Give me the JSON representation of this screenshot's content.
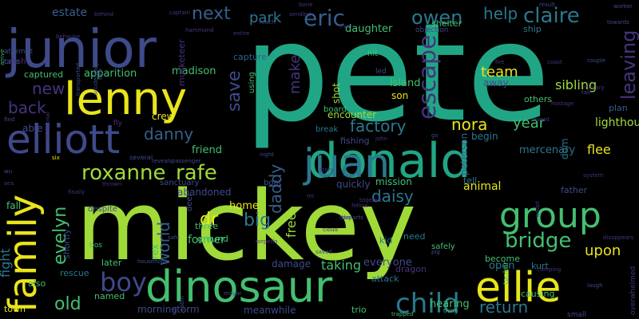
{
  "background": "#000000",
  "palette": {
    "teal": "#21a685",
    "lime": "#a0da39",
    "yellow": "#e9e51a",
    "green": "#44bf70",
    "blue": "#2a788e",
    "slate": "#355f8d",
    "indigo": "#3e4a89",
    "purple": "#46337e",
    "violet": "#440154"
  },
  "words": [
    {
      "text": "pete",
      "color": "#21a685",
      "weight": 100
    },
    {
      "text": "mickey",
      "color": "#a0da39",
      "weight": 65
    },
    {
      "text": "junior",
      "color": "#3e4a89",
      "weight": 40
    },
    {
      "text": "donald",
      "color": "#21a685",
      "weight": 32
    },
    {
      "text": "lenny",
      "color": "#e9e51a",
      "weight": 30
    },
    {
      "text": "dinosaur",
      "color": "#44bf70",
      "weight": 28
    },
    {
      "text": "elliott",
      "color": "#3e4a89",
      "weight": 26
    },
    {
      "text": "juan",
      "color": "#2a788e",
      "weight": 26
    },
    {
      "text": "ellie",
      "color": "#e9e51a",
      "weight": 25
    },
    {
      "text": "family",
      "color": "#e9e51a",
      "weight": 24
    },
    {
      "text": "group",
      "color": "#44bf70",
      "weight": 22
    },
    {
      "text": "roxanne",
      "color": "#a0da39",
      "weight": 18
    },
    {
      "text": "rafe",
      "color": "#a0da39",
      "weight": 18
    },
    {
      "text": "boy",
      "color": "#3e4a89",
      "weight": 17
    },
    {
      "text": "child",
      "color": "#2a788e",
      "weight": 16
    },
    {
      "text": "eric",
      "color": "#355f8d",
      "weight": 15
    },
    {
      "text": "claire",
      "color": "#2a788e",
      "weight": 15
    },
    {
      "text": "owen",
      "color": "#2a788e",
      "weight": 15
    },
    {
      "text": "escape",
      "color": "#46337e",
      "weight": 15
    },
    {
      "text": "evelyn",
      "color": "#44bf70",
      "weight": 15
    },
    {
      "text": "bridge",
      "color": "#44bf70",
      "weight": 14
    },
    {
      "text": "daisy",
      "color": "#2a788e",
      "weight": 14
    },
    {
      "text": "factory",
      "color": "#2a788e",
      "weight": 14
    },
    {
      "text": "big",
      "color": "#2a788e",
      "weight": 14
    },
    {
      "text": "leaving",
      "color": "#46337e",
      "weight": 13
    },
    {
      "text": "danny",
      "color": "#355f8d",
      "weight": 13
    },
    {
      "text": "save",
      "color": "#3e4a89",
      "weight": 13
    },
    {
      "text": "next",
      "color": "#355f8d",
      "weight": 12
    },
    {
      "text": "team",
      "color": "#e9e51a",
      "weight": 12
    },
    {
      "text": "nora",
      "color": "#e9e51a",
      "weight": 12
    },
    {
      "text": "year",
      "color": "#44bf70",
      "weight": 12
    },
    {
      "text": "daddy",
      "color": "#355f8d",
      "weight": 12
    },
    {
      "text": "upon",
      "color": "#e9e51a",
      "weight": 12
    },
    {
      "text": "return",
      "color": "#2a788e",
      "weight": 12
    },
    {
      "text": "world",
      "color": "#355f8d",
      "weight": 11
    },
    {
      "text": "back",
      "color": "#46337e",
      "weight": 11
    },
    {
      "text": "new",
      "color": "#46337e",
      "weight": 11
    },
    {
      "text": "old",
      "color": "#44bf70",
      "weight": 11
    },
    {
      "text": "help",
      "color": "#2a788e",
      "weight": 11
    },
    {
      "text": "dr",
      "color": "#e9e51a",
      "weight": 11
    },
    {
      "text": "park",
      "color": "#2a788e",
      "weight": 10
    },
    {
      "text": "make",
      "color": "#46337e",
      "weight": 10
    },
    {
      "text": "fight",
      "color": "#2a788e",
      "weight": 10
    },
    {
      "text": "free",
      "color": "#a0da39",
      "weight": 10
    },
    {
      "text": "animal",
      "color": "#e9e51a",
      "weight": 10
    },
    {
      "text": "flee",
      "color": "#e9e51a",
      "weight": 9
    },
    {
      "text": "sibling",
      "color": "#a0da39",
      "weight": 9
    },
    {
      "text": "taking",
      "color": "#44bf70",
      "weight": 9
    },
    {
      "text": "former",
      "color": "#44bf70",
      "weight": 9
    },
    {
      "text": "estate",
      "color": "#355f8d",
      "weight": 9
    },
    {
      "text": "apparition",
      "color": "#44bf70",
      "weight": 8
    },
    {
      "text": "madison",
      "color": "#44bf70",
      "weight": 8
    },
    {
      "text": "friend",
      "color": "#44bf70",
      "weight": 8
    },
    {
      "text": "home",
      "color": "#e9e51a",
      "weight": 8
    },
    {
      "text": "rex",
      "color": "#44bf70",
      "weight": 8
    },
    {
      "text": "daughter",
      "color": "#44bf70",
      "weight": 8
    },
    {
      "text": "lighthouse",
      "color": "#a0da39",
      "weight": 8
    },
    {
      "text": "island",
      "color": "#44bf70",
      "weight": 8
    },
    {
      "text": "son",
      "color": "#e9e51a",
      "weight": 8
    },
    {
      "text": "shot",
      "color": "#a0da39",
      "weight": 8
    },
    {
      "text": "everyone",
      "color": "#3e4a89",
      "weight": 8
    },
    {
      "text": "mercenary",
      "color": "#2a788e",
      "weight": 8
    },
    {
      "text": "hearing",
      "color": "#44bf70",
      "weight": 8
    },
    {
      "text": "open",
      "color": "#2a788e",
      "weight": 8
    },
    {
      "text": "fall",
      "color": "#44bf70",
      "weight": 8
    },
    {
      "text": "crew",
      "color": "#e9e51a",
      "weight": 7
    },
    {
      "text": "able",
      "color": "#3e4a89",
      "weight": 7
    },
    {
      "text": "abandoned",
      "color": "#3e4a89",
      "weight": 7
    },
    {
      "text": "morning",
      "color": "#3e4a89",
      "weight": 7
    },
    {
      "text": "storm",
      "color": "#3e4a89",
      "weight": 7
    },
    {
      "text": "meanwhile",
      "color": "#3e4a89",
      "weight": 7
    },
    {
      "text": "encounter",
      "color": "#a0da39",
      "weight": 7
    },
    {
      "text": "away",
      "color": "#3e4a89",
      "weight": 7
    },
    {
      "text": "begin",
      "color": "#2a788e",
      "weight": 7
    },
    {
      "text": "father",
      "color": "#3e4a89",
      "weight": 7
    },
    {
      "text": "quickly",
      "color": "#3e4a89",
      "weight": 7
    },
    {
      "text": "mission",
      "color": "#44bf70",
      "weight": 7
    },
    {
      "text": "tell",
      "color": "#2a788e",
      "weight": 7
    },
    {
      "text": "become",
      "color": "#44bf70",
      "weight": 7
    },
    {
      "text": "kurt",
      "color": "#2a788e",
      "weight": 7
    },
    {
      "text": "causing",
      "color": "#44bf70",
      "weight": 7
    },
    {
      "text": "trio",
      "color": "#44bf70",
      "weight": 7
    },
    {
      "text": "need",
      "color": "#2a788e",
      "weight": 6
    },
    {
      "text": "dragon",
      "color": "#46337e",
      "weight": 6
    },
    {
      "text": "attack",
      "color": "#2a788e",
      "weight": 6
    },
    {
      "text": "damage",
      "color": "#3e4a89",
      "weight": 6
    },
    {
      "text": "ground",
      "color": "#44bf70",
      "weight": 6
    },
    {
      "text": "three",
      "color": "#44bf70",
      "weight": 6
    },
    {
      "text": "later",
      "color": "#44bf70",
      "weight": 6
    },
    {
      "text": "named",
      "color": "#44bf70",
      "weight": 6
    },
    {
      "text": "town",
      "color": "#e9e51a",
      "weight": 6
    },
    {
      "text": "shortly",
      "color": "#3e4a89",
      "weight": 6
    },
    {
      "text": "rescue",
      "color": "#2a788e",
      "weight": 6
    },
    {
      "text": "also",
      "color": "#44bf70",
      "weight": 6
    },
    {
      "text": "shelter",
      "color": "#44bf70",
      "weight": 6
    },
    {
      "text": "ship",
      "color": "#2a788e",
      "weight": 6
    },
    {
      "text": "others",
      "color": "#44bf70",
      "weight": 6
    },
    {
      "text": "plan",
      "color": "#355f8d",
      "weight": 6
    },
    {
      "text": "dom",
      "color": "#2a788e",
      "weight": 6
    },
    {
      "text": "kid",
      "color": "#2a788e",
      "weight": 6
    },
    {
      "text": "peterson",
      "color": "#355f8d",
      "weight": 6
    },
    {
      "text": "fishing",
      "color": "#3e4a89",
      "weight": 6
    },
    {
      "text": "musketeer",
      "color": "#46337e",
      "weight": 6
    },
    {
      "text": "captured",
      "color": "#44bf70",
      "weight": 5
    },
    {
      "text": "crash",
      "color": "#46337e",
      "weight": 5
    },
    {
      "text": "capture",
      "color": "#355f8d",
      "weight": 5
    },
    {
      "text": "hit",
      "color": "#44bf70",
      "weight": 5
    },
    {
      "text": "using",
      "color": "#44bf70",
      "weight": 5
    },
    {
      "text": "board",
      "color": "#44bf70",
      "weight": 5
    },
    {
      "text": "break",
      "color": "#2a788e",
      "weight": 5
    },
    {
      "text": "despite",
      "color": "#3e4a89",
      "weight": 5
    },
    {
      "text": "sanctuary",
      "color": "#3e4a89",
      "weight": 5
    },
    {
      "text": "boat",
      "color": "#3e4a89",
      "weight": 5
    },
    {
      "text": "deer",
      "color": "#3e4a89",
      "weight": 5
    },
    {
      "text": "safely",
      "color": "#44bf70",
      "weight": 5
    },
    {
      "text": "small",
      "color": "#3e4a89",
      "weight": 5
    },
    {
      "text": "overwhelmed",
      "color": "#46337e",
      "weight": 4
    },
    {
      "text": "objection",
      "color": "#3e4a89",
      "weight": 4
    },
    {
      "text": "led",
      "color": "#3e4a89",
      "weight": 4
    },
    {
      "text": "tanker",
      "color": "#44bf70",
      "weight": 4
    },
    {
      "text": "bos",
      "color": "#44bf70",
      "weight": 4
    },
    {
      "text": "attempt",
      "color": "#3e4a89",
      "weight": 4
    },
    {
      "text": "take",
      "color": "#3e4a89",
      "weight": 4
    },
    {
      "text": "fly",
      "color": "#46337e",
      "weight": 4
    },
    {
      "text": "several",
      "color": "#3e4a89",
      "weight": 4
    },
    {
      "text": "six",
      "color": "#e9e51a",
      "weight": 3
    },
    {
      "text": "finally",
      "color": "#46337e",
      "weight": 3
    },
    {
      "text": "thrown",
      "color": "#46337e",
      "weight": 3
    },
    {
      "text": "transported",
      "color": "#3e4a89",
      "weight": 3
    },
    {
      "text": "accidentally",
      "color": "#3e4a89",
      "weight": 3
    },
    {
      "text": "reveals",
      "color": "#3e4a89",
      "weight": 3
    },
    {
      "text": "passenger",
      "color": "#3e4a89",
      "weight": 3
    },
    {
      "text": "torpedo",
      "color": "#46337e",
      "weight": 3
    },
    {
      "text": "mayor",
      "color": "#3e4a89",
      "weight": 3
    },
    {
      "text": "cabin",
      "color": "#3e4a89",
      "weight": 3
    },
    {
      "text": "household",
      "color": "#3e4a89",
      "weight": 3
    },
    {
      "text": "safe",
      "color": "#3e4a89",
      "weight": 3
    },
    {
      "text": "saved",
      "color": "#3e4a89",
      "weight": 3
    },
    {
      "text": "cloud",
      "color": "#46337e",
      "weight": 3
    },
    {
      "text": "door",
      "color": "#3e4a89",
      "weight": 3
    },
    {
      "text": "go",
      "color": "#3e4a89",
      "weight": 3
    },
    {
      "text": "john",
      "color": "#46337e",
      "weight": 3
    },
    {
      "text": "pig",
      "color": "#3e4a89",
      "weight": 3
    },
    {
      "text": "trapped",
      "color": "#44bf70",
      "weight": 3
    },
    {
      "text": "thing",
      "color": "#44bf70",
      "weight": 3
    },
    {
      "text": "laugh",
      "color": "#3e4a89",
      "weight": 3
    },
    {
      "text": "together",
      "color": "#46337e",
      "weight": 3
    },
    {
      "text": "fellow",
      "color": "#46337e",
      "weight": 3
    },
    {
      "text": "departs",
      "color": "#3e4a89",
      "weight": 3
    },
    {
      "text": "mr",
      "color": "#46337e",
      "weight": 3
    },
    {
      "text": "night",
      "color": "#3e4a89",
      "weight": 3
    },
    {
      "text": "story",
      "color": "#46337e",
      "weight": 3
    },
    {
      "text": "event",
      "color": "#46337e",
      "weight": 3
    },
    {
      "text": "hostage",
      "color": "#46337e",
      "weight": 3
    },
    {
      "text": "tail",
      "color": "#3e4a89",
      "weight": 3
    },
    {
      "text": "military",
      "color": "#46337e",
      "weight": 3
    },
    {
      "text": "fire",
      "color": "#46337e",
      "weight": 3
    },
    {
      "text": "coast",
      "color": "#46337e",
      "weight": 3
    },
    {
      "text": "towards",
      "color": "#3e4a89",
      "weight": 3
    },
    {
      "text": "couple",
      "color": "#3e4a89",
      "weight": 3
    },
    {
      "text": "worker",
      "color": "#3e4a89",
      "weight": 3
    },
    {
      "text": "result",
      "color": "#3e4a89",
      "weight": 3
    },
    {
      "text": "bone",
      "color": "#46337e",
      "weight": 3
    },
    {
      "text": "reach",
      "color": "#3e4a89",
      "weight": 3
    },
    {
      "text": "river",
      "color": "#46337e",
      "weight": 3
    },
    {
      "text": "captain",
      "color": "#46337e",
      "weight": 3
    },
    {
      "text": "behind",
      "color": "#46337e",
      "weight": 3
    },
    {
      "text": "sending",
      "color": "#46337e",
      "weight": 3
    },
    {
      "text": "hammond",
      "color": "#46337e",
      "weight": 3
    },
    {
      "text": "entire",
      "color": "#46337e",
      "weight": 3
    },
    {
      "text": "behavior",
      "color": "#46337e",
      "weight": 3
    },
    {
      "text": "arrive",
      "color": "#44bf70",
      "weight": 3
    },
    {
      "text": "find",
      "color": "#3e4a89",
      "weight": 3
    },
    {
      "text": "wu",
      "color": "#3e4a89",
      "weight": 3
    },
    {
      "text": "sea",
      "color": "#46337e",
      "weight": 3
    },
    {
      "text": "tree",
      "color": "#3e4a89",
      "weight": 3
    },
    {
      "text": "additional",
      "color": "#46337e",
      "weight": 3
    },
    {
      "text": "system",
      "color": "#46337e",
      "weight": 3
    },
    {
      "text": "adopt",
      "color": "#46337e",
      "weight": 3
    },
    {
      "text": "disappears",
      "color": "#46337e",
      "weight": 3
    },
    {
      "text": "camping",
      "color": "#46337e",
      "weight": 3
    },
    {
      "text": "must",
      "color": "#46337e",
      "weight": 3
    },
    {
      "text": "time",
      "color": "#46337e",
      "weight": 3
    },
    {
      "text": "phil",
      "color": "#3e4a89",
      "weight": 3
    },
    {
      "text": "area",
      "color": "#46337e",
      "weight": 3
    },
    {
      "text": "trip",
      "color": "#46337e",
      "weight": 3
    },
    {
      "text": "run",
      "color": "#46337e",
      "weight": 3
    }
  ]
}
